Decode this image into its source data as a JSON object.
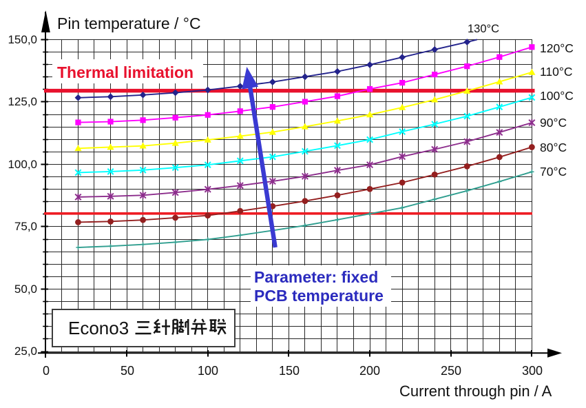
{
  "title": "Pin temperature / °C",
  "x_axis": {
    "title": "Current through pin / A",
    "tick_labels": [
      "0",
      "50",
      "100",
      "150",
      "200",
      "250",
      "300"
    ]
  },
  "y_axis": {
    "tick_labels": [
      "150,0",
      "125,0",
      "100,0",
      "75,0",
      "50,0",
      "25,0"
    ]
  },
  "annotations": {
    "thermal_limit": {
      "label": "Thermal limitation",
      "value": 129.5,
      "color": "#e8112d"
    },
    "lower_limit": {
      "value": 80.3,
      "color": "#ee1c23"
    },
    "parameter_note": {
      "line1": "Parameter: fixed",
      "line2": "PCB temperature",
      "color": "#2b2bbe"
    },
    "econo_label": {
      "latin": "Econo3",
      "cjk": "三针脚并联",
      "full": "Econo3 三针脚并联"
    }
  },
  "chart_data": {
    "type": "line",
    "title": "Pin temperature / °C",
    "xlabel": "Current through pin / A",
    "ylabel": "Pin temperature / °C",
    "xlim": [
      0,
      300
    ],
    "ylim": [
      25,
      150
    ],
    "x_grid_step": 10,
    "y_grid_step": 5,
    "x_tick_step": 50,
    "y_tick_step": 25,
    "legend_position": "right",
    "x": [
      20,
      40,
      60,
      80,
      100,
      120,
      140,
      160,
      180,
      200,
      220,
      240,
      260,
      280,
      300
    ],
    "series": [
      {
        "name": "130°C",
        "color": "#23238c",
        "marker": "diamond",
        "values": [
          126.7,
          127.1,
          127.8,
          128.7,
          129.8,
          131.3,
          133.0,
          135.1,
          137.2,
          139.9,
          142.9,
          146.0,
          149.0
        ],
        "exit": {
          "i": 266.2,
          "t": 150
        }
      },
      {
        "name": "120°C",
        "color": "#ff00ff",
        "marker": "square",
        "values": [
          116.8,
          117.1,
          117.7,
          118.7,
          119.8,
          121.3,
          123.0,
          125.1,
          127.3,
          130.2,
          132.7,
          136.0,
          139.3,
          143.0,
          147.0
        ]
      },
      {
        "name": "110°C",
        "color": "#ffff00",
        "marker": "triangle",
        "values": [
          106.4,
          106.9,
          107.4,
          108.5,
          109.8,
          111.3,
          112.9,
          115.1,
          117.4,
          119.9,
          122.8,
          125.9,
          129.4,
          133.1,
          136.9
        ]
      },
      {
        "name": "100°C",
        "color": "#00ffff",
        "marker": "x",
        "values": [
          96.7,
          97.1,
          97.7,
          98.7,
          99.8,
          101.4,
          103.0,
          105.2,
          107.5,
          109.9,
          113.1,
          116.1,
          119.3,
          123.0,
          126.8
        ]
      },
      {
        "name": "90°C",
        "color": "#8c2d8c",
        "marker": "asterisk",
        "values": [
          86.9,
          87.2,
          87.6,
          88.7,
          90.0,
          91.5,
          93.2,
          95.2,
          97.6,
          99.8,
          103.1,
          106.0,
          109.1,
          112.8,
          116.7
        ]
      },
      {
        "name": "80°C",
        "color": "#941f1f",
        "marker": "circle",
        "values": [
          76.8,
          77.1,
          77.7,
          78.6,
          79.5,
          81.3,
          83.2,
          85.3,
          87.6,
          90.1,
          92.7,
          95.9,
          99.2,
          102.9,
          106.9
        ]
      },
      {
        "name": "70°C",
        "color": "#2f9e8f",
        "marker": "plus",
        "values": [
          66.7,
          67.2,
          67.9,
          68.8,
          69.9,
          71.6,
          73.5,
          75.5,
          77.8,
          80.2,
          82.6,
          86.0,
          89.4,
          93.1,
          97.0
        ]
      }
    ]
  }
}
